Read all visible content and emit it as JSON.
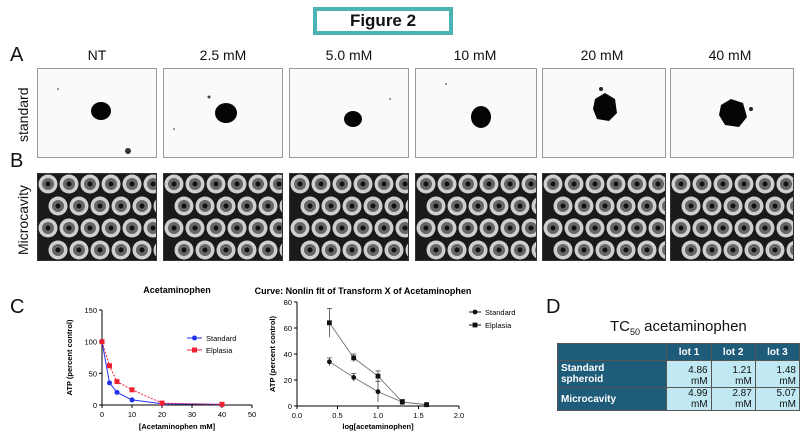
{
  "figure_title": "Figure 2",
  "panels": {
    "A": "A",
    "B": "B",
    "C": "C",
    "D": "D"
  },
  "conditions": [
    "NT",
    "2.5 mM",
    "5.0 mM",
    "10 mM",
    "20 mM",
    "40 mM"
  ],
  "row_labels": {
    "standard": "standard",
    "microcavity": "Microcavity"
  },
  "colors": {
    "title_border": "#4bb3b3",
    "standard": "#2233ee",
    "elplasia": "#ee2233",
    "table_header": "#1f5c7a",
    "table_cell": "#bfe8f2"
  },
  "table": {
    "title_prefix": "TC",
    "title_sub": "50",
    "title_suffix": " acetaminophen",
    "columns": [
      "lot 1",
      "lot 2",
      "lot 3"
    ],
    "rows": [
      {
        "label_line1": "Standard",
        "label_line2": "spheroid",
        "values": [
          "4.86 mM",
          "1.21 mM",
          "1.48 mM"
        ]
      },
      {
        "label_line1": "Microcavity",
        "label_line2": "",
        "values": [
          "4.99 mM",
          "2.87 mM",
          "5.07 mM"
        ]
      }
    ]
  },
  "chart_data": [
    {
      "type": "line",
      "title": "Acetaminophen",
      "xlabel": "[Acetaminophen mM]",
      "ylabel": "ATP (percent control)",
      "xlim": [
        0,
        50
      ],
      "ylim": [
        0,
        150
      ],
      "xticks": [
        0,
        10,
        20,
        30,
        40,
        50
      ],
      "yticks": [
        0,
        50,
        100,
        150
      ],
      "legend_position": "top-right",
      "series": [
        {
          "name": "Standard",
          "x": [
            0,
            2.5,
            5,
            10,
            20,
            40
          ],
          "y": [
            100,
            35,
            20,
            8,
            2,
            1
          ]
        },
        {
          "name": "Elplasia",
          "x": [
            0,
            2.5,
            5,
            10,
            20,
            40
          ],
          "y": [
            100,
            62,
            37,
            24,
            3,
            1
          ]
        }
      ]
    },
    {
      "type": "scatter",
      "title": "Curve: Nonlin fit of Transform X of Acetaminophen",
      "xlabel": "log[acetaminophen]",
      "ylabel": "ATP (percent control)",
      "xlim": [
        0.0,
        2.0
      ],
      "ylim": [
        0,
        80
      ],
      "xticks": [
        "0.0",
        "0.5",
        "1.0",
        "1.5",
        "2.0"
      ],
      "yticks": [
        0,
        20,
        40,
        60,
        80
      ],
      "legend_position": "top-right",
      "series": [
        {
          "name": "Standard",
          "marker": "circle",
          "x": [
            0.4,
            0.7,
            1.0,
            1.3,
            1.6
          ],
          "y": [
            34,
            22,
            11,
            3,
            1
          ],
          "err": [
            3,
            3,
            8,
            2,
            1
          ]
        },
        {
          "name": "Elplasia",
          "marker": "square",
          "x": [
            0.4,
            0.7,
            1.0,
            1.3,
            1.6
          ],
          "y": [
            64,
            37,
            23,
            3,
            1
          ],
          "err": [
            11,
            3,
            4,
            2,
            1
          ]
        }
      ]
    }
  ]
}
